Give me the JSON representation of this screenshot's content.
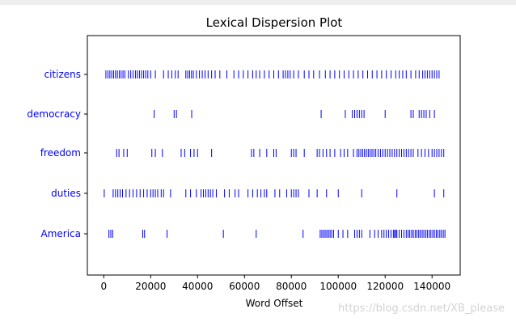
{
  "chart_data": {
    "type": "scatter",
    "title": "Lexical Dispersion Plot",
    "xlabel": "Word Offset",
    "ylabel": "",
    "xlim": [
      -7000,
      152000
    ],
    "xticks": [
      0,
      20000,
      40000,
      60000,
      80000,
      100000,
      120000,
      140000
    ],
    "xtick_labels": [
      "0",
      "20000",
      "40000",
      "60000",
      "80000",
      "100000",
      "120000",
      "140000"
    ],
    "grid": false,
    "marker": "|",
    "colors": {
      "marks": "#0000ff",
      "labels": "#0000ff",
      "axes": "#000000"
    },
    "series": [
      {
        "name": "citizens",
        "x": [
          900,
          1800,
          2600,
          3400,
          4200,
          5000,
          5800,
          6600,
          7400,
          8200,
          9000,
          10500,
          11500,
          12500,
          13500,
          14300,
          15200,
          16100,
          17000,
          17900,
          18800,
          20000,
          22000,
          25500,
          27500,
          29000,
          30500,
          31700,
          35000,
          35800,
          36600,
          37400,
          38200,
          39500,
          40800,
          42000,
          43200,
          44500,
          46000,
          47500,
          49500,
          52500,
          55500,
          57500,
          59500,
          61500,
          63500,
          65000,
          66500,
          68500,
          70500,
          72500,
          74500,
          76500,
          77500,
          78500,
          79500,
          81000,
          83000,
          85500,
          87500,
          89500,
          92000,
          94500,
          96500,
          98500,
          100500,
          102500,
          104500,
          106500,
          108500,
          110500,
          112500,
          114500,
          116500,
          118500,
          120500,
          122500,
          124500,
          126000,
          127500,
          129000,
          131000,
          133000,
          134500,
          136000,
          137000,
          138000,
          139000,
          140000,
          141000,
          142000,
          143000
        ]
      },
      {
        "name": "democracy",
        "x": [
          21500,
          30000,
          31000,
          37500,
          92700,
          103000,
          106000,
          107000,
          108000,
          109000,
          110000,
          111000,
          120000,
          131000,
          132000,
          134500,
          135500,
          136500,
          137500,
          139000,
          141000
        ]
      },
      {
        "name": "freedom",
        "x": [
          5500,
          6500,
          8500,
          10000,
          20500,
          22000,
          25000,
          33000,
          34500,
          37000,
          38500,
          40000,
          46000,
          63000,
          64000,
          66500,
          69500,
          72500,
          73500,
          80000,
          81000,
          82000,
          85500,
          91000,
          92000,
          93500,
          95000,
          96500,
          98500,
          101000,
          102500,
          104000,
          106500,
          108000,
          108800,
          109600,
          110400,
          111200,
          112000,
          112800,
          113600,
          114400,
          115200,
          116000,
          117000,
          118000,
          119000,
          120000,
          121000,
          122000,
          123000,
          124000,
          125000,
          126000,
          127000,
          128000,
          129000,
          130000,
          131000,
          132000,
          134000,
          135500,
          137000,
          138500,
          140000,
          141000,
          142000,
          143000,
          144000,
          145000
        ]
      },
      {
        "name": "duties",
        "x": [
          200,
          4000,
          5000,
          6000,
          7000,
          8000,
          9500,
          11000,
          12500,
          14000,
          15500,
          17000,
          18500,
          20000,
          21000,
          22000,
          23000,
          24500,
          25500,
          28500,
          35000,
          37000,
          39500,
          41500,
          42500,
          43500,
          44500,
          45500,
          46500,
          48000,
          51500,
          53500,
          56000,
          57500,
          61500,
          63500,
          65500,
          67000,
          68500,
          69500,
          73000,
          75000,
          78000,
          80000,
          81000,
          82000,
          83000,
          87500,
          91000,
          95000,
          100000,
          110000,
          125000,
          141000,
          145000
        ]
      },
      {
        "name": "America",
        "x": [
          2200,
          3000,
          3800,
          16600,
          17400,
          27000,
          51000,
          65000,
          85000,
          92300,
          93000,
          93700,
          94400,
          95100,
          95800,
          96500,
          97200,
          98000,
          100000,
          102000,
          104000,
          107000,
          108000,
          109000,
          110000,
          113500,
          115500,
          117000,
          118500,
          119500,
          120500,
          121500,
          122500,
          123500,
          124000,
          124500,
          125000,
          126000,
          127000,
          128000,
          129000,
          129800,
          130500,
          131300,
          132000,
          132800,
          133500,
          134300,
          135000,
          135800,
          136500,
          137300,
          138000,
          138800,
          139500,
          140300,
          141000,
          141800,
          142500,
          143300,
          144000,
          144800,
          145500
        ]
      }
    ]
  }
}
